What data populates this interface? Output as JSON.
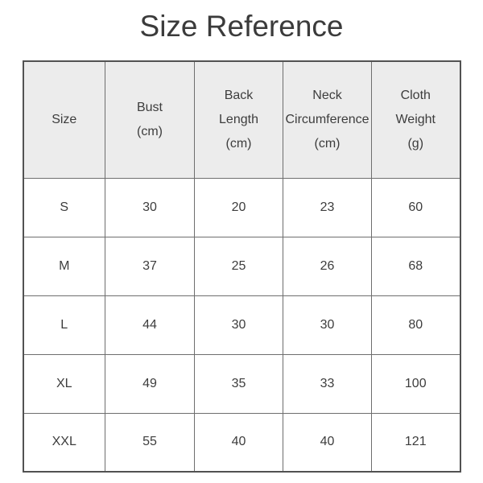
{
  "title": "Size Reference",
  "colors": {
    "page_bg": "#ffffff",
    "title_text": "#3b3b3b",
    "table_text": "#3d3d3d",
    "header_bg": "#ececec",
    "row_bg": "#ffffff",
    "border_inner": "#6e6e6e",
    "border_outer": "#525252"
  },
  "table": {
    "headers": {
      "size": "Size",
      "bust": "Bust\n(cm)",
      "back_length": "Back\nLength\n(cm)",
      "neck_circumference": "Neck\nCircumference\n(cm)",
      "cloth_weight": "Cloth\nWeight\n(g)"
    },
    "rows": [
      [
        "S",
        "30",
        "20",
        "23",
        "60"
      ],
      [
        "M",
        "37",
        "25",
        "26",
        "68"
      ],
      [
        "L",
        "44",
        "30",
        "30",
        "80"
      ],
      [
        "XL",
        "49",
        "35",
        "33",
        "100"
      ],
      [
        "XXL",
        "55",
        "40",
        "40",
        "121"
      ]
    ]
  },
  "chart_data": {
    "type": "table",
    "title": "Size Reference",
    "columns": [
      "Size",
      "Bust (cm)",
      "Back Length (cm)",
      "Neck Circumference (cm)",
      "Cloth Weight (g)"
    ],
    "rows": [
      [
        "S",
        30,
        20,
        23,
        60
      ],
      [
        "M",
        37,
        25,
        26,
        68
      ],
      [
        "L",
        44,
        30,
        30,
        80
      ],
      [
        "XL",
        49,
        35,
        33,
        100
      ],
      [
        "XXL",
        55,
        40,
        40,
        121
      ]
    ]
  }
}
